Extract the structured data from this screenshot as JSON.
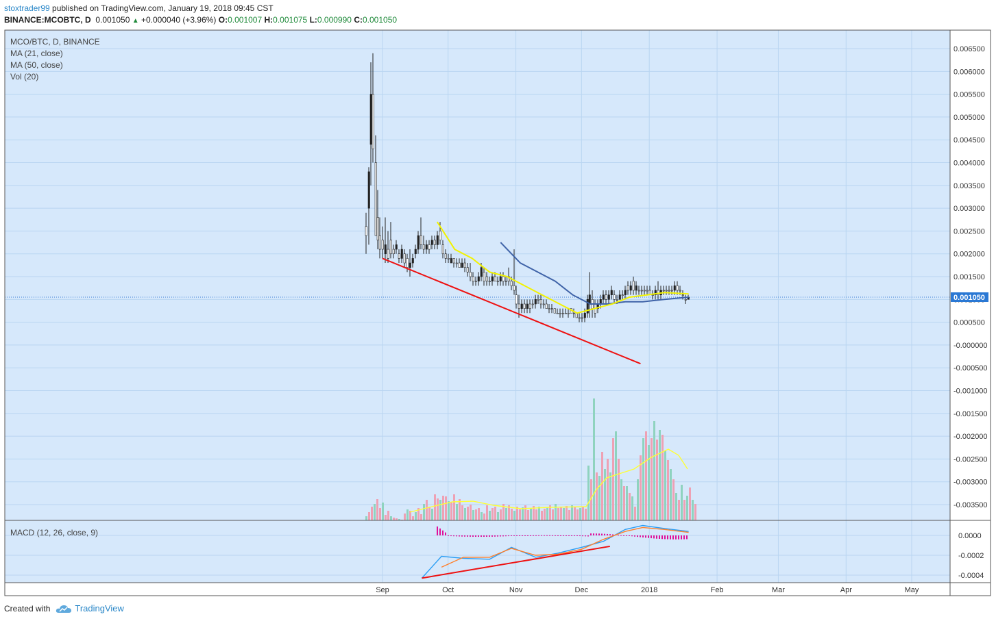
{
  "header": {
    "author": "stoxtrader99",
    "published_text": " published on TradingView.com, January 19, 2018 09:45 CST",
    "symbol": "BINANCE:MCOBTC, D",
    "price": "0.001050",
    "change": "+0.000040 (+3.96%)",
    "o_label": "O:",
    "o_value": "0.001007",
    "h_label": "H:",
    "h_value": "0.001075",
    "l_label": "L:",
    "l_value": "0.000990",
    "c_label": "C:",
    "c_value": "0.001050"
  },
  "legend": {
    "title": "MCO/BTC, D, BINANCE",
    "ma21": "MA (21, close)",
    "ma50": "MA (50, close)",
    "vol": "Vol (20)",
    "macd": "MACD (12, 26, close, 9)"
  },
  "footer": {
    "created_with": "Created with",
    "brand": "TradingView"
  },
  "colors": {
    "background": "#d6e8fb",
    "grid": "#b9d5f1",
    "candle": "#222222",
    "ma21": "#f2f200",
    "ma50": "#3f63a8",
    "trendline": "#ee1111",
    "vol_up": "#8fd3bf",
    "vol_down": "#eea1b4",
    "macd_line": "#2a9df4",
    "signal_line": "#ff7f2a",
    "histogram": "#e0109a",
    "price_tag": "#2a78d4"
  },
  "chart_data": {
    "type": "candlestick",
    "symbol": "MCO/BTC",
    "interval": "D",
    "x_axis": {
      "ticks": [
        "Sep",
        "Oct",
        "Nov",
        "Dec",
        "2018",
        "Feb",
        "Mar",
        "Apr",
        "May"
      ],
      "tick_dates": [
        "2017-09-01",
        "2017-10-01",
        "2017-11-01",
        "2017-12-01",
        "2018-01-01",
        "2018-02-01",
        "2018-03-01",
        "2018-04-01",
        "2018-05-01"
      ]
    },
    "price_axis": {
      "ticks": [
        "0.006500",
        "0.006000",
        "0.005500",
        "0.005000",
        "0.004500",
        "0.004000",
        "0.003500",
        "0.003000",
        "0.002500",
        "0.002000",
        "0.001500",
        "0.001000",
        "0.000500",
        "-0.000000",
        "-0.000500",
        "-0.001000",
        "-0.001500",
        "-0.002000",
        "-0.002500",
        "-0.003000",
        "-0.003500"
      ],
      "last_price": "0.001050",
      "last_price_value": 0.00105
    },
    "macd_axis": {
      "ticks": [
        "0.0000",
        "-0.0002",
        "-0.0004"
      ]
    },
    "price_series": {
      "dates": [
        "2017-08-25",
        "2017-08-28",
        "2017-08-30",
        "2017-09-01",
        "2017-09-04",
        "2017-09-08",
        "2017-09-12",
        "2017-09-16",
        "2017-09-20",
        "2017-09-24",
        "2017-09-28",
        "2017-10-02",
        "2017-10-06",
        "2017-10-10",
        "2017-10-14",
        "2017-10-18",
        "2017-10-22",
        "2017-10-26",
        "2017-10-30",
        "2017-11-03",
        "2017-11-07",
        "2017-11-11",
        "2017-11-15",
        "2017-11-19",
        "2017-11-23",
        "2017-11-27",
        "2017-12-01",
        "2017-12-03",
        "2017-12-05",
        "2017-12-09",
        "2017-12-13",
        "2017-12-17",
        "2017-12-21",
        "2017-12-25",
        "2017-12-29",
        "2018-01-02",
        "2018-01-06",
        "2018-01-10",
        "2018-01-14",
        "2018-01-19"
      ],
      "close": [
        0.0024,
        0.004,
        0.0055,
        0.0035,
        0.0021,
        0.0019,
        0.0017,
        0.002,
        0.0022,
        0.0024,
        0.002,
        0.0018,
        0.0017,
        0.0016,
        0.0015,
        0.0014,
        0.0015,
        0.0014,
        0.0013,
        0.001,
        0.0009,
        0.0011,
        0.0009,
        0.00085,
        0.0008,
        0.0007,
        0.0006,
        0.0012,
        0.0008,
        0.001,
        0.0011,
        0.0012,
        0.00115,
        0.0014,
        0.0013,
        0.00115,
        0.0011,
        0.00125,
        0.0012,
        0.00105
      ]
    },
    "ma21": {
      "dates": [
        "2017-09-26",
        "2017-10-04",
        "2017-10-12",
        "2017-10-20",
        "2017-10-28",
        "2017-11-05",
        "2017-11-13",
        "2017-11-21",
        "2017-11-29",
        "2017-12-07",
        "2017-12-15",
        "2017-12-23",
        "2017-12-31",
        "2018-01-08",
        "2018-01-19"
      ],
      "values": [
        0.0027,
        0.0021,
        0.0019,
        0.0016,
        0.0015,
        0.0013,
        0.0011,
        0.0009,
        0.0007,
        0.0008,
        0.0009,
        0.00105,
        0.0011,
        0.00115,
        0.00112
      ]
    },
    "ma50": {
      "dates": [
        "2017-10-25",
        "2017-11-03",
        "2017-11-11",
        "2017-11-19",
        "2017-11-27",
        "2017-12-05",
        "2017-12-13",
        "2017-12-21",
        "2017-12-29",
        "2018-01-08",
        "2018-01-19"
      ],
      "values": [
        0.00225,
        0.0018,
        0.0016,
        0.0014,
        0.0011,
        0.0009,
        0.0009,
        0.00095,
        0.00095,
        0.001,
        0.00105
      ]
    },
    "trendlines": [
      {
        "pane": "price",
        "from": [
          "2017-09-01",
          0.0019
        ],
        "to": [
          "2017-12-28",
          -0.00041
        ]
      },
      {
        "pane": "macd",
        "from": [
          "2017-09-19",
          -0.00043
        ],
        "to": [
          "2017-12-14",
          -0.00011
        ]
      }
    ],
    "macd": {
      "dates": [
        "2017-09-19",
        "2017-09-28",
        "2017-10-08",
        "2017-10-20",
        "2017-10-30",
        "2017-11-10",
        "2017-11-20",
        "2017-12-01",
        "2017-12-11",
        "2017-12-21",
        "2017-12-29",
        "2018-01-08",
        "2018-01-19"
      ],
      "macd": [
        -0.00043,
        -0.00021,
        -0.00023,
        -0.00024,
        -0.00012,
        -0.00022,
        -0.00018,
        -0.00012,
        -6e-05,
        6e-05,
        0.0001,
        7e-05,
        4e-05
      ],
      "signal": [
        null,
        -0.00032,
        -0.00022,
        -0.00022,
        -0.00013,
        -0.0002,
        -0.00019,
        -0.00014,
        -4e-05,
        4e-05,
        8e-05,
        6e-05,
        3e-05
      ]
    }
  }
}
